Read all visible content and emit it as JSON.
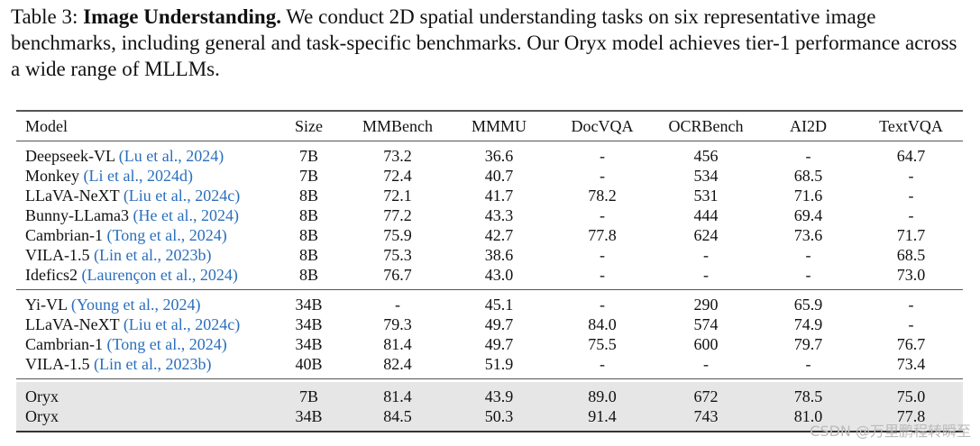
{
  "caption": {
    "label": "Table 3:",
    "title": "Image Understanding.",
    "text": "We conduct 2D spatial understanding tasks on six representative image benchmarks, including general and task-specific benchmarks. Our Oryx model achieves tier-1 performance across a wide range of MLLMs."
  },
  "columns": [
    "Model",
    "Size",
    "MMBench",
    "MMMU",
    "DocVQA",
    "OCRBench",
    "AI2D",
    "TextVQA"
  ],
  "groups": [
    [
      {
        "name": "Deepseek-VL",
        "cite": "(Lu et al., 2024)",
        "values": [
          "7B",
          "73.2",
          "36.6",
          "-",
          "456",
          "-",
          "64.7"
        ]
      },
      {
        "name": "Monkey",
        "cite": "(Li et al., 2024d)",
        "values": [
          "7B",
          "72.4",
          "40.7",
          "-",
          "534",
          "68.5",
          "-"
        ]
      },
      {
        "name": "LLaVA-NeXT",
        "cite": "(Liu et al., 2024c)",
        "values": [
          "8B",
          "72.1",
          "41.7",
          "78.2",
          "531",
          "71.6",
          "-"
        ]
      },
      {
        "name": "Bunny-LLama3",
        "cite": "(He et al., 2024)",
        "values": [
          "8B",
          "77.2",
          "43.3",
          "-",
          "444",
          "69.4",
          "-"
        ]
      },
      {
        "name": "Cambrian-1",
        "cite": "(Tong et al., 2024)",
        "values": [
          "8B",
          "75.9",
          "42.7",
          "77.8",
          "624",
          "73.6",
          "71.7"
        ]
      },
      {
        "name": "VILA-1.5",
        "cite": "(Lin et al., 2023b)",
        "values": [
          "8B",
          "75.3",
          "38.6",
          "-",
          "-",
          "-",
          "68.5"
        ]
      },
      {
        "name": "Idefics2",
        "cite": "(Laurençon et al., 2024)",
        "values": [
          "8B",
          "76.7",
          "43.0",
          "-",
          "-",
          "-",
          "73.0"
        ]
      }
    ],
    [
      {
        "name": "Yi-VL",
        "cite": "(Young et al., 2024)",
        "values": [
          "34B",
          "-",
          "45.1",
          "-",
          "290",
          "65.9",
          "-"
        ]
      },
      {
        "name": "LLaVA-NeXT",
        "cite": "(Liu et al., 2024c)",
        "values": [
          "34B",
          "79.3",
          "49.7",
          "84.0",
          "574",
          "74.9",
          "-"
        ]
      },
      {
        "name": "Cambrian-1",
        "cite": "(Tong et al., 2024)",
        "values": [
          "34B",
          "81.4",
          "49.7",
          "75.5",
          "600",
          "79.7",
          "76.7"
        ]
      },
      {
        "name": "VILA-1.5",
        "cite": "(Lin et al., 2023b)",
        "values": [
          "40B",
          "82.4",
          "51.9",
          "-",
          "-",
          "-",
          "73.4"
        ]
      }
    ],
    [
      {
        "name": "Oryx",
        "cite": "",
        "values": [
          "7B",
          "81.4",
          "43.9",
          "89.0",
          "672",
          "78.5",
          "75.0"
        ]
      },
      {
        "name": "Oryx",
        "cite": "",
        "values": [
          "34B",
          "84.5",
          "50.3",
          "91.4",
          "743",
          "81.0",
          "77.8"
        ]
      }
    ]
  ],
  "colors": {
    "citation": "#2a6fbd",
    "highlight_row": "#e6e6e6"
  },
  "watermark": "CSDN @万里鹏程转瞬至"
}
